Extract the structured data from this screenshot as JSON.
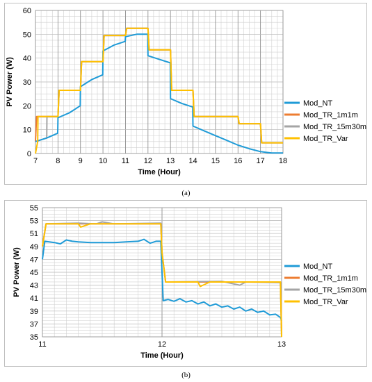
{
  "captions": {
    "a": "(a)",
    "b": "(b)"
  },
  "colors": {
    "Mod_NT": "#1f9bd7",
    "Mod_TR_1m1m": "#ed7d31",
    "Mod_TR_15m30m": "#a5a5a5",
    "Mod_TR_Var": "#ffc000",
    "grid": "#d0d0d0",
    "grid_major": "#888888"
  },
  "chart_data": [
    {
      "type": "line",
      "xlabel": "Time (Hour)",
      "ylabel": "PV Power (W)",
      "xlim": [
        7,
        18
      ],
      "ylim": [
        0,
        60
      ],
      "xticks": [
        7,
        8,
        9,
        10,
        11,
        12,
        13,
        14,
        15,
        16,
        17,
        18
      ],
      "yticks": [
        0,
        10,
        20,
        30,
        40,
        50,
        60
      ],
      "legend_position": "right",
      "grid": true,
      "series": [
        {
          "name": "Mod_NT",
          "x": [
            7,
            7.5,
            7.99,
            8,
            8.5,
            8.99,
            9,
            9.5,
            9.99,
            10,
            10.5,
            10.99,
            11,
            11.5,
            11.99,
            12,
            12.5,
            12.99,
            13,
            13.5,
            13.99,
            14,
            14.5,
            15,
            15.5,
            16,
            16.5,
            17,
            17.5,
            18
          ],
          "y": [
            5,
            6.5,
            8.5,
            15,
            17,
            20,
            28,
            31,
            33,
            43,
            45.5,
            47,
            49,
            50,
            50,
            41,
            39.5,
            38,
            23,
            21,
            19.5,
            11.5,
            9.5,
            7.5,
            5.5,
            3.5,
            2,
            0.8,
            0.2,
            0.2
          ]
        },
        {
          "name": "Mod_TR_1m1m",
          "x": [
            7,
            7.05,
            7.15,
            8,
            8.05,
            9,
            9.05,
            10,
            10.05,
            11,
            11.05,
            12,
            12.05,
            13,
            13.05,
            14,
            14.05,
            15,
            15.05,
            16,
            16.05,
            17,
            17.05,
            18
          ],
          "y": [
            5,
            15.5,
            15.5,
            15.5,
            26.5,
            26.5,
            38.5,
            38.5,
            49.5,
            49.5,
            52.5,
            52.5,
            43.5,
            43.5,
            26.5,
            26.5,
            15.5,
            15.5,
            15.5,
            15.5,
            12.5,
            12.5,
            4.5,
            4.5
          ]
        },
        {
          "name": "Mod_TR_15m30m",
          "x": [
            7,
            7.5,
            7.51,
            8,
            8.05,
            9,
            9.05,
            10,
            10.05,
            11,
            11.05,
            12,
            12.05,
            13,
            13.05,
            14,
            14.05,
            15,
            15.05,
            16,
            16.05,
            17,
            17.05,
            18
          ],
          "y": [
            5,
            6.5,
            15.5,
            15.5,
            26.5,
            26.5,
            38.5,
            38.5,
            49.5,
            49.5,
            52.5,
            52.5,
            43.5,
            43.5,
            26.5,
            26.5,
            15.5,
            15.5,
            15.5,
            15.5,
            12.5,
            12.5,
            4.5,
            4.5
          ]
        },
        {
          "name": "Mod_TR_Var",
          "x": [
            7,
            7.1,
            7.11,
            8,
            8.05,
            9,
            9.05,
            10,
            10.05,
            11,
            11.05,
            12,
            12.05,
            13,
            13.05,
            14,
            14.05,
            15,
            15.05,
            16,
            16.05,
            17,
            17.05,
            18
          ],
          "y": [
            0,
            5,
            15.5,
            15.5,
            26.5,
            26.5,
            38.5,
            38.5,
            49.5,
            49.5,
            52.5,
            52.5,
            43.5,
            43.5,
            26.5,
            26.5,
            15.5,
            15.5,
            15.5,
            15.5,
            12.5,
            12.5,
            4.5,
            4.5
          ]
        }
      ]
    },
    {
      "type": "line",
      "xlabel": "Time (Hour)",
      "ylabel": "PV Power (W)",
      "xlim": [
        11,
        13
      ],
      "ylim": [
        35,
        55
      ],
      "xticks": [
        11,
        12,
        13
      ],
      "yticks": [
        35,
        37,
        39,
        41,
        43,
        45,
        47,
        49,
        51,
        53,
        55
      ],
      "legend_position": "right",
      "grid": true,
      "series": [
        {
          "name": "Mod_NT",
          "x": [
            11,
            11.02,
            11.1,
            11.15,
            11.2,
            11.25,
            11.3,
            11.4,
            11.5,
            11.6,
            11.7,
            11.8,
            11.85,
            11.9,
            11.95,
            11.99,
            12.0,
            12.01,
            12.05,
            12.1,
            12.15,
            12.2,
            12.25,
            12.3,
            12.35,
            12.4,
            12.45,
            12.5,
            12.55,
            12.6,
            12.65,
            12.7,
            12.75,
            12.8,
            12.85,
            12.9,
            12.95,
            12.99,
            13.0
          ],
          "y": [
            47,
            49.8,
            49.6,
            49.4,
            50,
            49.8,
            49.7,
            49.6,
            49.6,
            49.6,
            49.7,
            49.8,
            50.1,
            49.5,
            49.8,
            49.8,
            45,
            40.6,
            40.8,
            40.5,
            40.9,
            40.4,
            40.6,
            40.1,
            40.4,
            39.8,
            40.1,
            39.6,
            39.8,
            39.3,
            39.6,
            39.0,
            39.3,
            38.8,
            39.0,
            38.4,
            38.5,
            38.0,
            37.5
          ]
        },
        {
          "name": "Mod_TR_1m1m",
          "x": [
            11,
            11.03,
            11.3,
            11.6,
            11.99,
            12.0,
            12.03,
            12.5,
            12.99,
            13.0
          ],
          "y": [
            49,
            52.5,
            52.5,
            52.5,
            52.5,
            48,
            43.5,
            43.5,
            43.5,
            36
          ]
        },
        {
          "name": "Mod_TR_15m30m",
          "x": [
            11,
            11.03,
            11.3,
            11.45,
            11.5,
            11.6,
            11.99,
            12.0,
            12.03,
            12.5,
            12.65,
            12.7,
            12.99,
            13.0
          ],
          "y": [
            49,
            52.5,
            52.6,
            52.5,
            52.8,
            52.5,
            52.6,
            48,
            43.5,
            43.6,
            43.0,
            43.5,
            43.4,
            35
          ]
        },
        {
          "name": "Mod_TR_Var",
          "x": [
            11,
            11.03,
            11.3,
            11.32,
            11.4,
            11.99,
            12.0,
            12.03,
            12.3,
            12.32,
            12.4,
            12.99,
            13.0
          ],
          "y": [
            49,
            52.5,
            52.5,
            52.0,
            52.5,
            52.5,
            48,
            43.5,
            43.5,
            42.8,
            43.5,
            43.5,
            35
          ]
        }
      ]
    }
  ]
}
